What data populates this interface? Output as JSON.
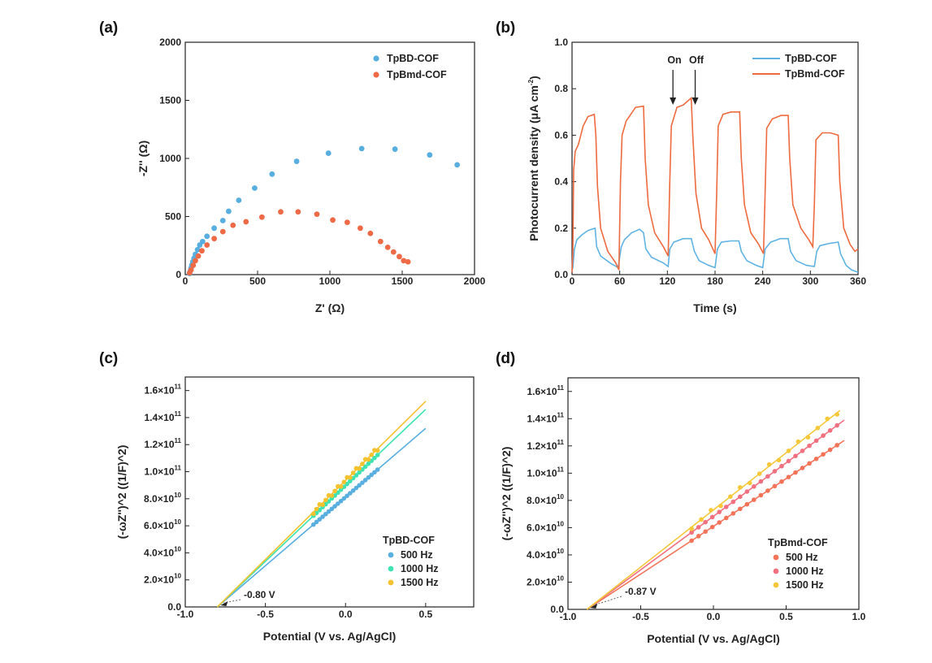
{
  "colors": {
    "blue": "#59aee0",
    "orange": "#ee6a47",
    "teal": "#3ee3b1",
    "gold": "#f4c22e",
    "red2": "#f06a7a",
    "d500": "#f27358",
    "d1000": "#f07080",
    "d1500": "#f5c83a",
    "blueLine": "#5fb3e3",
    "orangeLine": "#ee6a3f"
  },
  "chart_data": [
    {
      "id": "a",
      "type": "scatter",
      "panel_label": "(a)",
      "xlabel": "Z' (Ω)",
      "ylabel": "-Z'' (Ω)",
      "xlim": [
        0,
        2000
      ],
      "ylim": [
        0,
        2000
      ],
      "xticks": [
        0,
        500,
        1000,
        1500,
        2000
      ],
      "yticks": [
        0,
        500,
        1000,
        1500,
        2000
      ],
      "legend_position": "top-right",
      "series": [
        {
          "name": "TpBD-COF",
          "color": "blue",
          "points": [
            [
              30,
              10
            ],
            [
              35,
              30
            ],
            [
              40,
              55
            ],
            [
              45,
              80
            ],
            [
              52,
              110
            ],
            [
              60,
              140
            ],
            [
              70,
              175
            ],
            [
              85,
              215
            ],
            [
              100,
              255
            ],
            [
              120,
              285
            ],
            [
              150,
              330
            ],
            [
              200,
              400
            ],
            [
              260,
              465
            ],
            [
              300,
              545
            ],
            [
              370,
              640
            ],
            [
              480,
              745
            ],
            [
              600,
              865
            ],
            [
              770,
              975
            ],
            [
              990,
              1045
            ],
            [
              1220,
              1085
            ],
            [
              1450,
              1080
            ],
            [
              1690,
              1030
            ],
            [
              1880,
              945
            ]
          ]
        },
        {
          "name": "TpBmd-COF",
          "color": "orange",
          "points": [
            [
              30,
              15
            ],
            [
              40,
              40
            ],
            [
              55,
              80
            ],
            [
              70,
              120
            ],
            [
              90,
              160
            ],
            [
              115,
              205
            ],
            [
              150,
              255
            ],
            [
              200,
              310
            ],
            [
              260,
              370
            ],
            [
              330,
              425
            ],
            [
              420,
              455
            ],
            [
              530,
              495
            ],
            [
              660,
              540
            ],
            [
              780,
              540
            ],
            [
              910,
              520
            ],
            [
              1020,
              470
            ],
            [
              1120,
              450
            ],
            [
              1210,
              400
            ],
            [
              1280,
              355
            ],
            [
              1350,
              285
            ],
            [
              1400,
              235
            ],
            [
              1440,
              195
            ],
            [
              1480,
              155
            ],
            [
              1510,
              120
            ],
            [
              1540,
              110
            ]
          ]
        }
      ]
    },
    {
      "id": "b",
      "type": "line",
      "panel_label": "(b)",
      "xlabel": "Time (s)",
      "ylabel": "Photocurrent density (μA cm",
      "ylabel_unit_exp": "-2",
      "ylabel_tail": ")",
      "xlim": [
        0,
        360
      ],
      "ylim": [
        0,
        1.0
      ],
      "xticks": [
        0,
        60,
        120,
        180,
        240,
        300,
        360
      ],
      "yticks": [
        0.0,
        0.2,
        0.4,
        0.6,
        0.8,
        1.0
      ],
      "legend_position": "top-right",
      "annotations": [
        "On",
        "Off"
      ],
      "series": [
        {
          "name": "TpBD-COF",
          "color": "blueLine",
          "points": [
            [
              0,
              0.02
            ],
            [
              1,
              0.03
            ],
            [
              3,
              0.11
            ],
            [
              6,
              0.15
            ],
            [
              12,
              0.17
            ],
            [
              20,
              0.19
            ],
            [
              29,
              0.2
            ],
            [
              31,
              0.12
            ],
            [
              36,
              0.08
            ],
            [
              48,
              0.05
            ],
            [
              58,
              0.03
            ],
            [
              62,
              0.12
            ],
            [
              66,
              0.15
            ],
            [
              75,
              0.18
            ],
            [
              85,
              0.195
            ],
            [
              90,
              0.18
            ],
            [
              93,
              0.11
            ],
            [
              100,
              0.075
            ],
            [
              115,
              0.05
            ],
            [
              121,
              0.035
            ],
            [
              123,
              0.11
            ],
            [
              128,
              0.14
            ],
            [
              140,
              0.155
            ],
            [
              150,
              0.155
            ],
            [
              154,
              0.1
            ],
            [
              160,
              0.06
            ],
            [
              172,
              0.04
            ],
            [
              180,
              0.03
            ],
            [
              183,
              0.11
            ],
            [
              188,
              0.14
            ],
            [
              200,
              0.145
            ],
            [
              210,
              0.145
            ],
            [
              213,
              0.1
            ],
            [
              220,
              0.06
            ],
            [
              232,
              0.04
            ],
            [
              240,
              0.03
            ],
            [
              243,
              0.11
            ],
            [
              250,
              0.14
            ],
            [
              262,
              0.155
            ],
            [
              272,
              0.155
            ],
            [
              275,
              0.1
            ],
            [
              282,
              0.06
            ],
            [
              295,
              0.04
            ],
            [
              305,
              0.035
            ],
            [
              308,
              0.1
            ],
            [
              312,
              0.125
            ],
            [
              325,
              0.135
            ],
            [
              335,
              0.14
            ],
            [
              338,
              0.09
            ],
            [
              345,
              0.04
            ],
            [
              352,
              0.02
            ],
            [
              360,
              0.01
            ]
          ]
        },
        {
          "name": "TpBmd-COF",
          "color": "orangeLine",
          "points": [
            [
              0,
              0.01
            ],
            [
              1,
              0.1
            ],
            [
              2,
              0.45
            ],
            [
              4,
              0.53
            ],
            [
              8,
              0.56
            ],
            [
              14,
              0.64
            ],
            [
              20,
              0.68
            ],
            [
              28,
              0.69
            ],
            [
              30,
              0.6
            ],
            [
              32,
              0.38
            ],
            [
              36,
              0.2
            ],
            [
              45,
              0.1
            ],
            [
              55,
              0.05
            ],
            [
              59,
              0.02
            ],
            [
              61,
              0.4
            ],
            [
              63,
              0.6
            ],
            [
              68,
              0.66
            ],
            [
              80,
              0.72
            ],
            [
              90,
              0.725
            ],
            [
              92,
              0.5
            ],
            [
              96,
              0.3
            ],
            [
              104,
              0.18
            ],
            [
              115,
              0.12
            ],
            [
              121,
              0.08
            ],
            [
              123,
              0.4
            ],
            [
              125,
              0.64
            ],
            [
              132,
              0.72
            ],
            [
              140,
              0.73
            ],
            [
              150,
              0.76
            ],
            [
              152,
              0.6
            ],
            [
              156,
              0.35
            ],
            [
              163,
              0.2
            ],
            [
              172,
              0.15
            ],
            [
              180,
              0.09
            ],
            [
              182,
              0.35
            ],
            [
              184,
              0.64
            ],
            [
              190,
              0.69
            ],
            [
              200,
              0.7
            ],
            [
              211,
              0.7
            ],
            [
              213,
              0.5
            ],
            [
              217,
              0.3
            ],
            [
              225,
              0.18
            ],
            [
              235,
              0.13
            ],
            [
              241,
              0.09
            ],
            [
              243,
              0.35
            ],
            [
              245,
              0.63
            ],
            [
              252,
              0.67
            ],
            [
              263,
              0.685
            ],
            [
              272,
              0.685
            ],
            [
              274,
              0.5
            ],
            [
              278,
              0.3
            ],
            [
              288,
              0.2
            ],
            [
              298,
              0.15
            ],
            [
              303,
              0.12
            ],
            [
              305,
              0.3
            ],
            [
              307,
              0.58
            ],
            [
              315,
              0.61
            ],
            [
              325,
              0.61
            ],
            [
              335,
              0.6
            ],
            [
              337,
              0.4
            ],
            [
              342,
              0.2
            ],
            [
              350,
              0.13
            ],
            [
              356,
              0.1
            ],
            [
              360,
              0.11
            ]
          ]
        }
      ]
    },
    {
      "id": "c",
      "type": "scatter",
      "panel_label": "(c)",
      "xlabel": "Potential (V vs. Ag/AgCl)",
      "ylabel": "(-ωZ'')^2 ((1/F)^2)",
      "xlim": [
        -1.0,
        0.8
      ],
      "ylim": [
        0,
        170000000000.0
      ],
      "xticks": [
        -1.0,
        -0.5,
        0.0,
        0.5
      ],
      "xtick_labels": [
        "-1.0",
        "-0.5",
        "0.0",
        "0.5"
      ],
      "yticks": [
        0,
        20000000000.0,
        40000000000.0,
        60000000000.0,
        80000000000.0,
        100000000000.0,
        120000000000.0,
        140000000000.0,
        160000000000.0
      ],
      "ytick_labels": [
        {
          "m": "0.0",
          "e": ""
        },
        {
          "m": "2.0×10",
          "e": "10"
        },
        {
          "m": "4.0×10",
          "e": "10"
        },
        {
          "m": "6.0×10",
          "e": "10"
        },
        {
          "m": "8.0×10",
          "e": "10"
        },
        {
          "m": "1.0×10",
          "e": "11"
        },
        {
          "m": "1.2×10",
          "e": "11"
        },
        {
          "m": "1.4×10",
          "e": "11"
        },
        {
          "m": "1.6×10",
          "e": "11"
        }
      ],
      "legend_title": "TpBD-COF",
      "legend_position": "bottom-right",
      "annotation": "-0.80 V",
      "intercept_x": -0.8,
      "series": [
        {
          "name": "500 Hz",
          "color": "blue",
          "fit": [
            [
              -0.8,
              0
            ],
            [
              0.5,
              132000000000.0
            ]
          ],
          "x_range": [
            -0.2,
            0.2
          ],
          "slope": 101500000000.0,
          "npts": 22
        },
        {
          "name": "1000 Hz",
          "color": "teal",
          "fit": [
            [
              -0.8,
              0
            ],
            [
              0.5,
              146000000000.0
            ]
          ],
          "x_range": [
            -0.2,
            0.2
          ],
          "slope": 112300000000.0,
          "npts": 22
        },
        {
          "name": "1500 Hz",
          "color": "gold",
          "fit": [
            [
              -0.8,
              0
            ],
            [
              0.5,
              152000000000.0
            ]
          ],
          "x_range": [
            -0.2,
            0.2
          ],
          "slope": 116900000000.0,
          "npts": 22
        }
      ]
    },
    {
      "id": "d",
      "type": "scatter",
      "panel_label": "(d)",
      "xlabel": "Potential (V vs. Ag/AgCl)",
      "ylabel": "(-ωZ'')^2 ((1/F)^2)",
      "xlim": [
        -1.0,
        1.0
      ],
      "ylim": [
        0,
        170000000000.0
      ],
      "xticks": [
        -1.0,
        -0.5,
        0.0,
        0.5,
        1.0
      ],
      "xtick_labels": [
        "-1.0",
        "-0.5",
        "0.0",
        "0.5",
        "1.0"
      ],
      "yticks": [
        0,
        20000000000.0,
        40000000000.0,
        60000000000.0,
        80000000000.0,
        100000000000.0,
        120000000000.0,
        140000000000.0,
        160000000000.0
      ],
      "ytick_labels": [
        {
          "m": "0.0",
          "e": ""
        },
        {
          "m": "2.0×10",
          "e": "10"
        },
        {
          "m": "4.0×10",
          "e": "10"
        },
        {
          "m": "6.0×10",
          "e": "10"
        },
        {
          "m": "8.0×10",
          "e": "10"
        },
        {
          "m": "1.0×10",
          "e": "11"
        },
        {
          "m": "1.2×10",
          "e": "11"
        },
        {
          "m": "1.4×10",
          "e": "11"
        },
        {
          "m": "1.6×10",
          "e": "11"
        }
      ],
      "legend_title": "TpBmd-COF",
      "legend_position": "bottom-right",
      "annotation": "-0.87 V",
      "intercept_x": -0.87,
      "series": [
        {
          "name": "500 Hz",
          "color": "d500",
          "fit": [
            [
              -0.87,
              0
            ],
            [
              0.9,
              124000000000.0
            ]
          ],
          "x_range": [
            -0.15,
            0.85
          ],
          "slope": 70060000000.0,
          "npts": 22
        },
        {
          "name": "1000 Hz",
          "color": "d1000",
          "fit": [
            [
              -0.87,
              0
            ],
            [
              0.9,
              139000000000.0
            ]
          ],
          "x_range": [
            -0.15,
            0.85
          ],
          "slope": 78530000000.0,
          "npts": 22
        },
        {
          "name": "1500 Hz",
          "color": "d1500",
          "fit": [
            [
              -0.87,
              0
            ],
            [
              0.87,
              146000000000.0
            ]
          ],
          "x_range": [
            -0.15,
            0.85
          ],
          "slope": 83910000000.0,
          "npts": 16
        }
      ]
    }
  ]
}
